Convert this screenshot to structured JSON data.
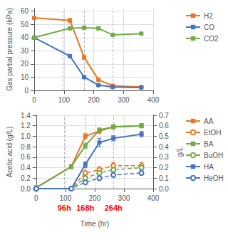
{
  "chart_data": [
    {
      "type": "line",
      "ylabel": "Gas partial pressure (kPa)",
      "x": [
        0,
        120,
        168,
        216,
        264,
        360
      ],
      "series": [
        {
          "name": "H2",
          "color": "#E87722",
          "marker": "square",
          "line_style": "solid",
          "values": [
            55,
            53,
            25,
            8,
            3.5,
            2.5
          ],
          "yerr": [
            0,
            1.5,
            1.5,
            0.8,
            0.3,
            0.2
          ]
        },
        {
          "name": "CO",
          "color": "#4472C4",
          "marker": "square",
          "line_style": "solid",
          "values": [
            40,
            26,
            10,
            4,
            2.5,
            2.2
          ],
          "yerr": [
            0,
            1.0,
            0.8,
            0.3,
            0.2,
            0.2
          ]
        },
        {
          "name": "CO2",
          "color": "#70AD47",
          "marker": "square",
          "line_style": "solid",
          "values": [
            40,
            47,
            47.5,
            47,
            42,
            43
          ],
          "yerr": [
            0,
            0.5,
            0.5,
            1.0,
            0.5,
            0.5
          ]
        }
      ],
      "xlim": [
        0,
        400
      ],
      "xticks": [
        0,
        100,
        200,
        300,
        400
      ],
      "ylim": [
        0,
        62
      ],
      "yticks": [
        0,
        10,
        20,
        30,
        40,
        50,
        60
      ],
      "vlines": [
        96,
        168,
        264
      ],
      "grid": true,
      "legend": "right"
    },
    {
      "type": "line",
      "xlabel": "Time (hr)",
      "ylabel": "Acetic acid (g/L)",
      "y2label": "g/L",
      "x": [
        0,
        120,
        168,
        216,
        264,
        360
      ],
      "series": [
        {
          "name": "AA",
          "color": "#E87722",
          "marker": "square",
          "line_style": "solid",
          "values": [
            0.02,
            0.42,
            1.0,
            1.1,
            1.18,
            1.2
          ],
          "yerr": [
            0,
            0.04,
            0.05,
            0.05,
            0.04,
            0.04
          ]
        },
        {
          "name": "EtOH",
          "color": "#E87722",
          "marker": "circle",
          "line_style": "dashed",
          "axis": "y2",
          "values": [
            0,
            0,
            0.15,
            0.18,
            0.22,
            0.22
          ],
          "yerr": [
            0,
            0,
            0.05,
            0.03,
            0.03,
            0.03
          ]
        },
        {
          "name": "BA",
          "color": "#70AD47",
          "marker": "square",
          "line_style": "solid",
          "values": [
            0.02,
            0.42,
            0.82,
            1.12,
            1.18,
            1.2
          ],
          "yerr": [
            0,
            0.04,
            0.05,
            0.04,
            0.04,
            0.04
          ]
        },
        {
          "name": "BuOH",
          "color": "#70AD47",
          "marker": "circle",
          "line_style": "dashed",
          "axis": "y2",
          "values": [
            0,
            0,
            0.1,
            0.15,
            0.18,
            0.2
          ],
          "yerr": [
            0,
            0,
            0.02,
            0.02,
            0.02,
            0.02
          ]
        },
        {
          "name": "HA",
          "color": "#4472C4",
          "marker": "square",
          "line_style": "solid",
          "values": [
            0,
            0,
            0.46,
            0.88,
            0.96,
            1.04
          ],
          "yerr": [
            0,
            0,
            0.05,
            0.08,
            0.05,
            0.05
          ]
        },
        {
          "name": "HeOH",
          "color": "#4472C4",
          "marker": "circle",
          "line_style": "dashed",
          "axis": "y2",
          "values": [
            0,
            0,
            0.06,
            0.1,
            0.13,
            0.15
          ],
          "yerr": [
            0,
            0,
            0.01,
            0.02,
            0.02,
            0.02
          ]
        }
      ],
      "xlim": [
        0,
        400
      ],
      "xticks": [
        0,
        100,
        200,
        300,
        400
      ],
      "ylim": [
        0,
        1.4
      ],
      "yticks": [
        {
          "value": 0,
          "label": "0.0"
        },
        0.2,
        0.4,
        0.6,
        0.8,
        {
          "value": 1.0,
          "label": "1.0"
        },
        1.2,
        1.4
      ],
      "y2lim": [
        0,
        0.7
      ],
      "y2ticks": [
        {
          "value": 0,
          "label": "0.0"
        },
        0.1,
        0.2,
        0.3,
        0.4,
        0.5,
        0.6,
        0.7
      ],
      "vlines": [
        96,
        168,
        264
      ],
      "annotations": [
        {
          "x": 96,
          "text": "96h",
          "color": "#FF0000"
        },
        {
          "x": 168,
          "text": "168h",
          "color": "#FF0000"
        },
        {
          "x": 264,
          "text": "264h",
          "color": "#FF0000"
        }
      ],
      "grid": true,
      "legend": "right"
    }
  ]
}
